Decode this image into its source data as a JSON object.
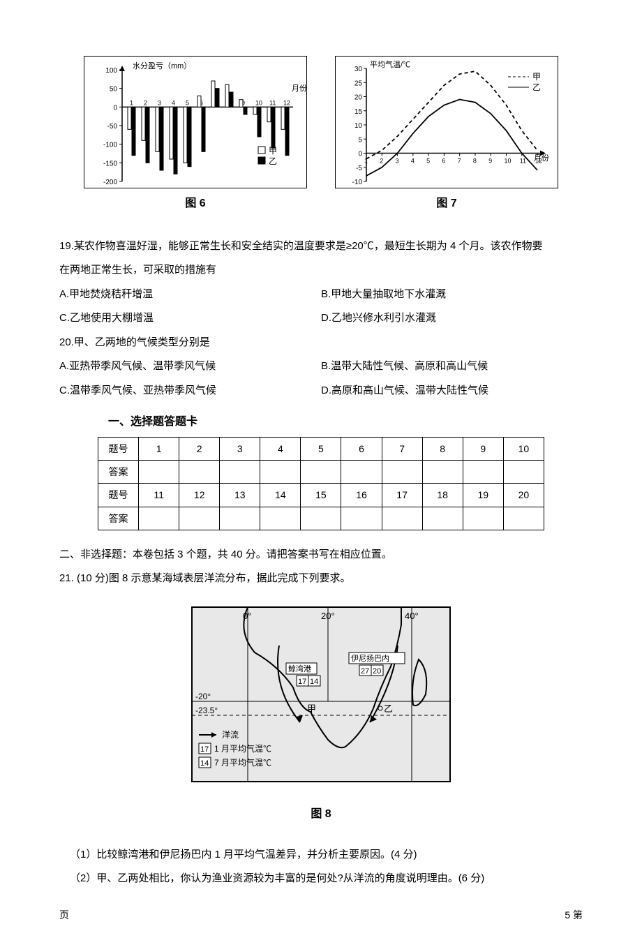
{
  "fig6": {
    "caption": "图 6",
    "y_label": "水分盈亏（mm）",
    "y_ticks": [
      100,
      50,
      0,
      -50,
      -100,
      -150,
      -200
    ],
    "x_ticks": [
      1,
      2,
      3,
      4,
      5,
      6,
      7,
      8,
      9,
      10,
      11,
      12
    ],
    "x_unit": "月份",
    "legend": {
      "a": "甲",
      "b": "乙",
      "a_symbol": "□",
      "b_symbol": "■"
    },
    "series_a": [
      -60,
      -90,
      -120,
      -140,
      -150,
      30,
      70,
      60,
      20,
      -20,
      -40,
      -60
    ],
    "series_b": [
      -130,
      -150,
      -170,
      -180,
      -160,
      -120,
      50,
      40,
      -20,
      -80,
      -110,
      -130
    ],
    "bar_fill_a": "#ffffff",
    "bar_fill_b": "#000000",
    "bar_stroke": "#000000",
    "bg": "#ffffff",
    "axis_color": "#000000"
  },
  "fig7": {
    "caption": "图 7",
    "y_label": "平均气温/℃",
    "y_ticks": [
      30,
      25,
      20,
      15,
      10,
      5,
      0,
      -5,
      -10
    ],
    "x_ticks": [
      1,
      2,
      3,
      4,
      5,
      6,
      7,
      8,
      9,
      10,
      11,
      12
    ],
    "x_unit": "月份",
    "legend": {
      "a": "甲",
      "b": "乙",
      "a_style": "dash",
      "b_style": "solid"
    },
    "series_a": [
      -2,
      1,
      6,
      12,
      18,
      24,
      28,
      29,
      24,
      17,
      8,
      1
    ],
    "series_b": [
      -8,
      -5,
      0,
      7,
      13,
      17,
      19,
      18,
      14,
      8,
      0,
      -6
    ],
    "line_color": "#000000",
    "bg": "#ffffff",
    "axis_color": "#000000"
  },
  "q19": {
    "stem1": "19.某农作物喜温好湿，能够正常生长和安全结实的温度要求是≥20℃，最短生长期为 4 个月。该农作物要",
    "stem2": "在两地正常生长，可采取的措施有",
    "A": "A.甲地焚烧秸秆增温",
    "B": "B.甲地大量抽取地下水灌溉",
    "C": "C.乙地使用大棚增温",
    "D": "D.乙地兴修水利引水灌溉"
  },
  "q20": {
    "stem": "20.甲、乙两地的气候类型分别是",
    "A": "A.亚热带季风气候、温带季风气候",
    "B": "B.温带大陆性气候、高原和高山气候",
    "C": "C.温带季风气候、亚热带季风气候",
    "D": "D.高原和高山气候、温带大陆性气候"
  },
  "answer_card": {
    "title": "一、选择题答题卡",
    "row_labels": {
      "num": "题号",
      "ans": "答案"
    },
    "row1": [
      1,
      2,
      3,
      4,
      5,
      6,
      7,
      8,
      9,
      10
    ],
    "row2": [
      11,
      12,
      13,
      14,
      15,
      16,
      17,
      18,
      19,
      20
    ]
  },
  "section2_intro": "二、非选择题：本卷包括 3 个题，共 40 分。请把答案书写在相应位置。",
  "q21": {
    "stem": "21. (10 分)图 8 示意某海域表层洋流分布，据此完成下列要求。",
    "sub1": "（1）比较鲸湾港和伊尼扬巴内 1 月平均气温差异，并分析主要原因。(4 分)",
    "sub2": "（2）甲、乙两处相比，你认为渔业资源较为丰富的是何处?从洋流的角度说明理由。(6 分)"
  },
  "fig8": {
    "caption": "图 8",
    "lon_labels": [
      "0°",
      "20°",
      "40°"
    ],
    "lat_labels": [
      "-20°",
      "-23.5°"
    ],
    "legend_current": "洋流",
    "legend_jan": "1 月平均气温℃",
    "legend_jul": "7 月平均气温℃",
    "port_a": "鲸湾港",
    "port_a_vals": [
      "17",
      "14"
    ],
    "port_b": "伊尼扬巴内",
    "port_b_vals": [
      "27",
      "20"
    ],
    "pt_a": "甲",
    "pt_b": "乙",
    "line_color": "#000000",
    "bg": "#e8e8e8"
  },
  "footer": {
    "left": "页",
    "right": "5 第"
  }
}
